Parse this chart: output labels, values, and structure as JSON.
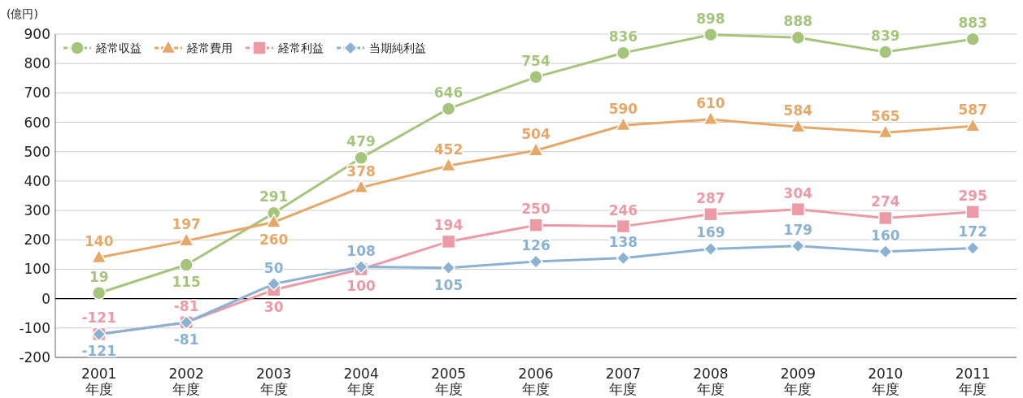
{
  "chart_data": {
    "type": "line",
    "ylabel": "(億円)",
    "categories": [
      "2001\n年度",
      "2002\n年度",
      "2003\n年度",
      "2004\n年度",
      "2005\n年度",
      "2006\n年度",
      "2007\n年度",
      "2008\n年度",
      "2009\n年度",
      "2010\n年度",
      "2011\n年度"
    ],
    "series": [
      {
        "name": "経常収益",
        "color": "#a5c57c",
        "marker": "circle",
        "values": [
          19,
          115,
          291,
          479,
          646,
          754,
          836,
          898,
          888,
          839,
          883
        ]
      },
      {
        "name": "経常費用",
        "color": "#e6a868",
        "marker": "triangle",
        "values": [
          140,
          197,
          260,
          378,
          452,
          504,
          590,
          610,
          584,
          565,
          587
        ]
      },
      {
        "name": "経常利益",
        "color": "#ec9aa5",
        "marker": "square",
        "values": [
          -121,
          -81,
          30,
          100,
          194,
          250,
          246,
          287,
          304,
          274,
          295
        ]
      },
      {
        "name": "当期純利益",
        "color": "#8bb1d3",
        "marker": "diamond",
        "values": [
          -121,
          -81,
          50,
          108,
          105,
          126,
          138,
          169,
          179,
          160,
          172
        ]
      }
    ],
    "ylim": [
      -200,
      900
    ],
    "yticks": [
      -200,
      -100,
      0,
      100,
      200,
      300,
      400,
      500,
      600,
      700,
      800,
      900
    ],
    "grid": "y",
    "legend": "top left",
    "data_labels": true,
    "line_style": "solid",
    "ref_lines": [
      {
        "axis": "y",
        "value": 0,
        "color": "#000000"
      }
    ]
  }
}
